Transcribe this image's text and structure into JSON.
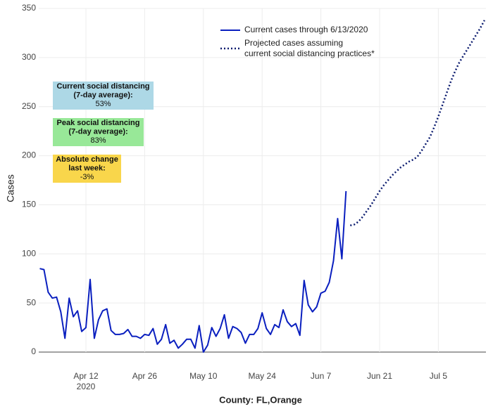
{
  "chart_data": {
    "type": "line",
    "y_label": "Cases",
    "x_label": "County: FL,Orange",
    "ylim": [
      0,
      350
    ],
    "yticks": [
      0,
      50,
      100,
      150,
      200,
      250,
      300,
      350
    ],
    "xticks": [
      {
        "value": "2020-04-12",
        "label": "Apr 12"
      },
      {
        "value": "2020-04-26",
        "label": "Apr 26"
      },
      {
        "value": "2020-05-10",
        "label": "May 10"
      },
      {
        "value": "2020-05-24",
        "label": "May 24"
      },
      {
        "value": "2020-06-07",
        "label": "Jun 7"
      },
      {
        "value": "2020-06-21",
        "label": "Jun 21"
      },
      {
        "value": "2020-07-05",
        "label": "Jul 5"
      }
    ],
    "xtick_year": "2020",
    "grid": true,
    "series": [
      {
        "name": "Current cases through 6/13/2020",
        "color": "#0a1fbf",
        "dash": "solid",
        "x": [
          "2020-04-01",
          "2020-04-02",
          "2020-04-03",
          "2020-04-04",
          "2020-04-05",
          "2020-04-06",
          "2020-04-07",
          "2020-04-08",
          "2020-04-09",
          "2020-04-10",
          "2020-04-11",
          "2020-04-12",
          "2020-04-13",
          "2020-04-14",
          "2020-04-15",
          "2020-04-16",
          "2020-04-17",
          "2020-04-18",
          "2020-04-19",
          "2020-04-20",
          "2020-04-21",
          "2020-04-22",
          "2020-04-23",
          "2020-04-24",
          "2020-04-25",
          "2020-04-26",
          "2020-04-27",
          "2020-04-28",
          "2020-04-29",
          "2020-04-30",
          "2020-05-01",
          "2020-05-02",
          "2020-05-03",
          "2020-05-04",
          "2020-05-05",
          "2020-05-06",
          "2020-05-07",
          "2020-05-08",
          "2020-05-09",
          "2020-05-10",
          "2020-05-11",
          "2020-05-12",
          "2020-05-13",
          "2020-05-14",
          "2020-05-15",
          "2020-05-16",
          "2020-05-17",
          "2020-05-18",
          "2020-05-19",
          "2020-05-20",
          "2020-05-21",
          "2020-05-22",
          "2020-05-23",
          "2020-05-24",
          "2020-05-25",
          "2020-05-26",
          "2020-05-27",
          "2020-05-28",
          "2020-05-29",
          "2020-05-30",
          "2020-05-31",
          "2020-06-01",
          "2020-06-02",
          "2020-06-03",
          "2020-06-04",
          "2020-06-05",
          "2020-06-06",
          "2020-06-07",
          "2020-06-08",
          "2020-06-09",
          "2020-06-10",
          "2020-06-11",
          "2020-06-12",
          "2020-06-13"
        ],
        "values": [
          85,
          84,
          61,
          55,
          56,
          41,
          14,
          55,
          36,
          42,
          21,
          25,
          74,
          14,
          33,
          42,
          44,
          22,
          18,
          18,
          19,
          23,
          16,
          16,
          14,
          18,
          17,
          24,
          8,
          13,
          28,
          9,
          12,
          4,
          8,
          13,
          13,
          4,
          27,
          0,
          7,
          25,
          16,
          24,
          38,
          14,
          26,
          24,
          20,
          9,
          18,
          18,
          24,
          40,
          24,
          18,
          28,
          25,
          43,
          31,
          26,
          29,
          17,
          73,
          48,
          41,
          46,
          60,
          62,
          71,
          93,
          136,
          95,
          164
        ]
      },
      {
        "name": "Projected cases assuming\ncurrent social distancing practices*",
        "color": "#0a1a6e",
        "dash": "dotted",
        "x": [
          "2020-06-14",
          "2020-06-15",
          "2020-06-16",
          "2020-06-17",
          "2020-06-18",
          "2020-06-19",
          "2020-06-20",
          "2020-06-21",
          "2020-06-22",
          "2020-06-23",
          "2020-06-24",
          "2020-06-25",
          "2020-06-26",
          "2020-06-27",
          "2020-06-28",
          "2020-06-29",
          "2020-06-30",
          "2020-07-01",
          "2020-07-02",
          "2020-07-03",
          "2020-07-04",
          "2020-07-05",
          "2020-07-06",
          "2020-07-07",
          "2020-07-08",
          "2020-07-09",
          "2020-07-10",
          "2020-07-11",
          "2020-07-12",
          "2020-07-13",
          "2020-07-14",
          "2020-07-15",
          "2020-07-16"
        ],
        "values": [
          129,
          130,
          133,
          138,
          144,
          150,
          157,
          164,
          170,
          175,
          180,
          184,
          188,
          191,
          194,
          196,
          199,
          205,
          212,
          219,
          229,
          240,
          252,
          264,
          276,
          286,
          295,
          302,
          309,
          316,
          323,
          330,
          338
        ]
      }
    ],
    "annotations": [
      {
        "lines": [
          "Current social distancing",
          "(7-day average):",
          "53%"
        ],
        "color": "#add8e6"
      },
      {
        "lines": [
          "Peak social distancing",
          "(7-day average):",
          "83%"
        ],
        "color": "#98e898"
      },
      {
        "lines": [
          "Absolute change",
          "last week:",
          "-3%"
        ],
        "color": "#f9d64b"
      }
    ]
  }
}
